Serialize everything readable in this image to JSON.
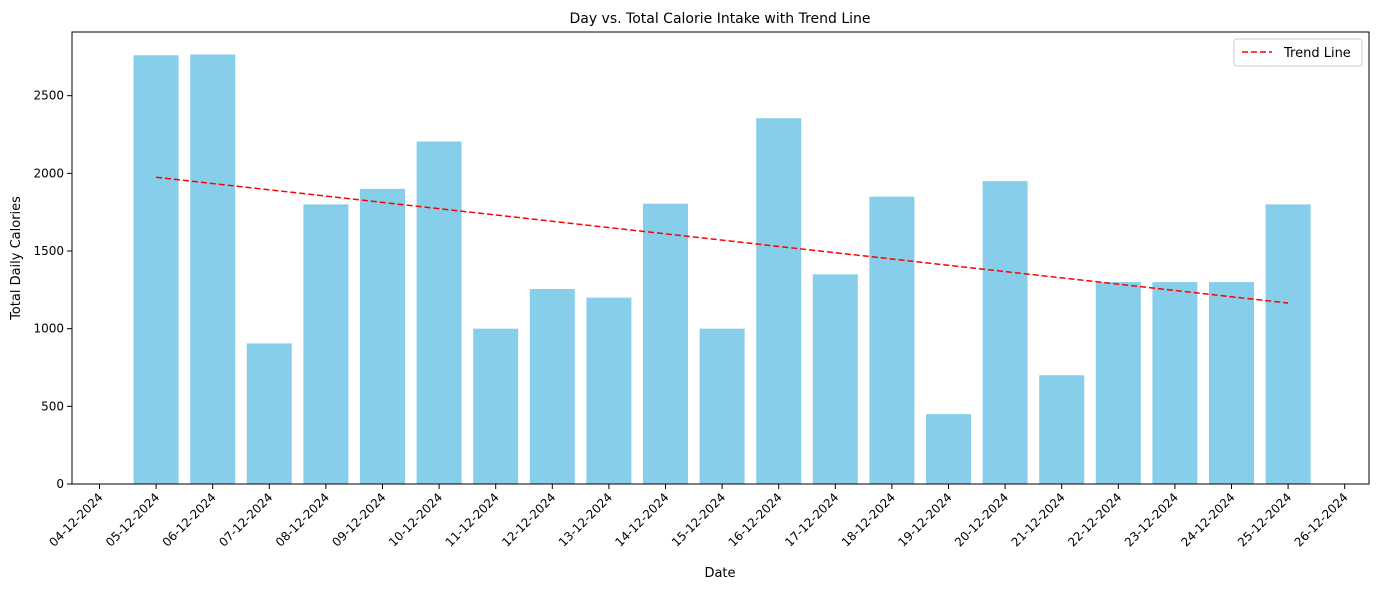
{
  "chart_data": {
    "type": "bar",
    "title": "Day vs. Total Calorie Intake with Trend Line",
    "xlabel": "Date",
    "ylabel": "Total Daily Calories",
    "x_ticks": [
      "04-12-2024",
      "05-12-2024",
      "06-12-2024",
      "07-12-2024",
      "08-12-2024",
      "09-12-2024",
      "10-12-2024",
      "11-12-2024",
      "12-12-2024",
      "13-12-2024",
      "14-12-2024",
      "15-12-2024",
      "16-12-2024",
      "17-12-2024",
      "18-12-2024",
      "19-12-2024",
      "20-12-2024",
      "21-12-2024",
      "22-12-2024",
      "23-12-2024",
      "24-12-2024",
      "25-12-2024",
      "26-12-2024"
    ],
    "categories": [
      "05-12-2024",
      "06-12-2024",
      "07-12-2024",
      "08-12-2024",
      "09-12-2024",
      "10-12-2024",
      "11-12-2024",
      "12-12-2024",
      "13-12-2024",
      "14-12-2024",
      "15-12-2024",
      "16-12-2024",
      "17-12-2024",
      "18-12-2024",
      "19-12-2024",
      "20-12-2024",
      "21-12-2024",
      "22-12-2024",
      "23-12-2024",
      "24-12-2024",
      "25-12-2024"
    ],
    "values": [
      2760,
      2765,
      905,
      1800,
      1900,
      2205,
      1000,
      1255,
      1200,
      1805,
      1000,
      2355,
      1350,
      1850,
      450,
      1950,
      700,
      1300,
      1300,
      1300,
      1800
    ],
    "yticks": [
      0,
      500,
      1000,
      1500,
      2000,
      2500
    ],
    "ylim": [
      0,
      2910
    ],
    "bar_color": "#87ceeb",
    "trend_line": {
      "name": "Trend Line",
      "start": [
        "05-12-2024",
        1975
      ],
      "end": [
        "25-12-2024",
        1165
      ],
      "color": "#ff0000",
      "style": "dashed"
    },
    "legend": {
      "position": "top-right",
      "entries": [
        "Trend Line"
      ]
    },
    "grid": false
  }
}
